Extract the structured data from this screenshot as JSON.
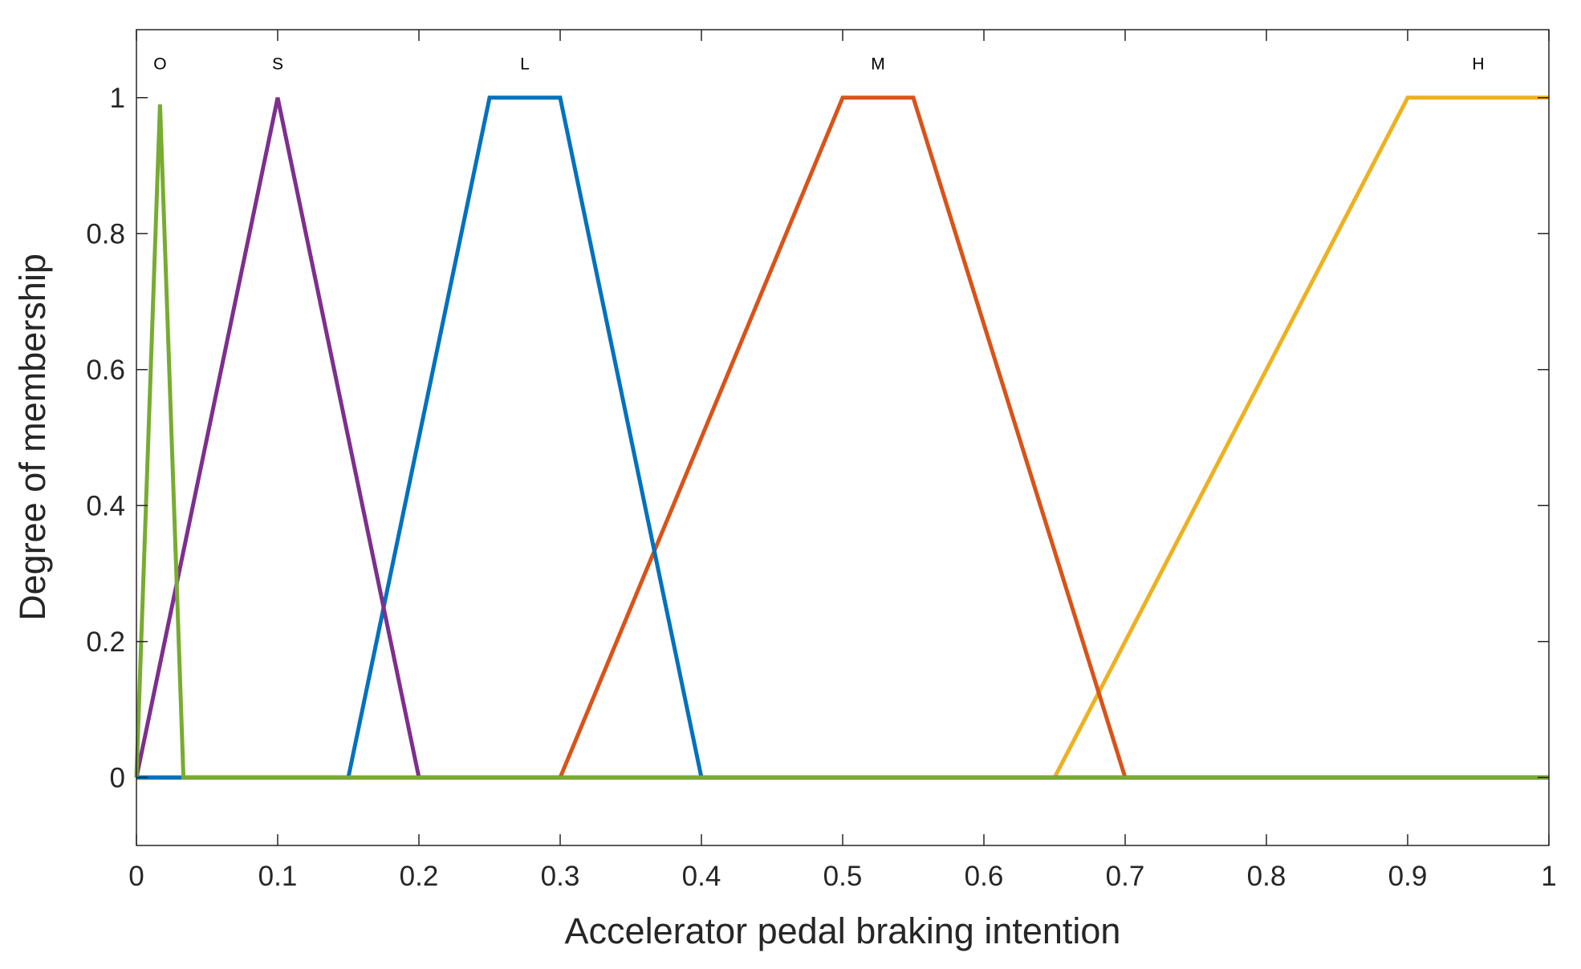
{
  "chart_data": {
    "type": "line",
    "xlabel": "Accelerator pedal braking intention",
    "ylabel": "Degree of membership",
    "xlim": [
      0,
      1
    ],
    "ylim": [
      -0.1,
      1.1
    ],
    "xticks": [
      0,
      0.1,
      0.2,
      0.3,
      0.4,
      0.5,
      0.6,
      0.7,
      0.8,
      0.9,
      1
    ],
    "xtick_labels": [
      "0",
      "0.1",
      "0.2",
      "0.3",
      "0.4",
      "0.5",
      "0.6",
      "0.7",
      "0.8",
      "0.9",
      "1"
    ],
    "yticks": [
      0,
      0.2,
      0.4,
      0.6,
      0.8,
      1
    ],
    "ytick_labels": [
      "0",
      "0.2",
      "0.4",
      "0.6",
      "0.8",
      "1"
    ],
    "grid": false,
    "legend": "none",
    "series": [
      {
        "label": "H",
        "color": "#EDB120",
        "x": [
          0,
          0.65,
          0.9,
          1
        ],
        "y": [
          0,
          0,
          1,
          1
        ],
        "label_at": [
          0.95,
          1.05
        ]
      },
      {
        "label": "M",
        "color": "#D95319",
        "x": [
          0,
          0.3,
          0.5,
          0.55,
          0.7,
          1
        ],
        "y": [
          0,
          0,
          1,
          1,
          0,
          0
        ],
        "label_at": [
          0.525,
          1.05
        ]
      },
      {
        "label": "L",
        "color": "#0072BD",
        "x": [
          0,
          0.15,
          0.25,
          0.3,
          0.4,
          1
        ],
        "y": [
          0,
          0,
          1,
          1,
          0,
          0
        ],
        "label_at": [
          0.275,
          1.05
        ]
      },
      {
        "label": "S",
        "color": "#7E2F8E",
        "x": [
          0,
          0.1,
          0.2,
          1
        ],
        "y": [
          0,
          1,
          0,
          0
        ],
        "label_at": [
          0.1,
          1.05
        ]
      },
      {
        "label": "O",
        "color": "#77AC30",
        "x": [
          0,
          0.0167,
          0.0333,
          1
        ],
        "y": [
          0,
          0.99,
          0,
          0
        ],
        "label_at": [
          0.0167,
          1.05
        ]
      }
    ]
  }
}
